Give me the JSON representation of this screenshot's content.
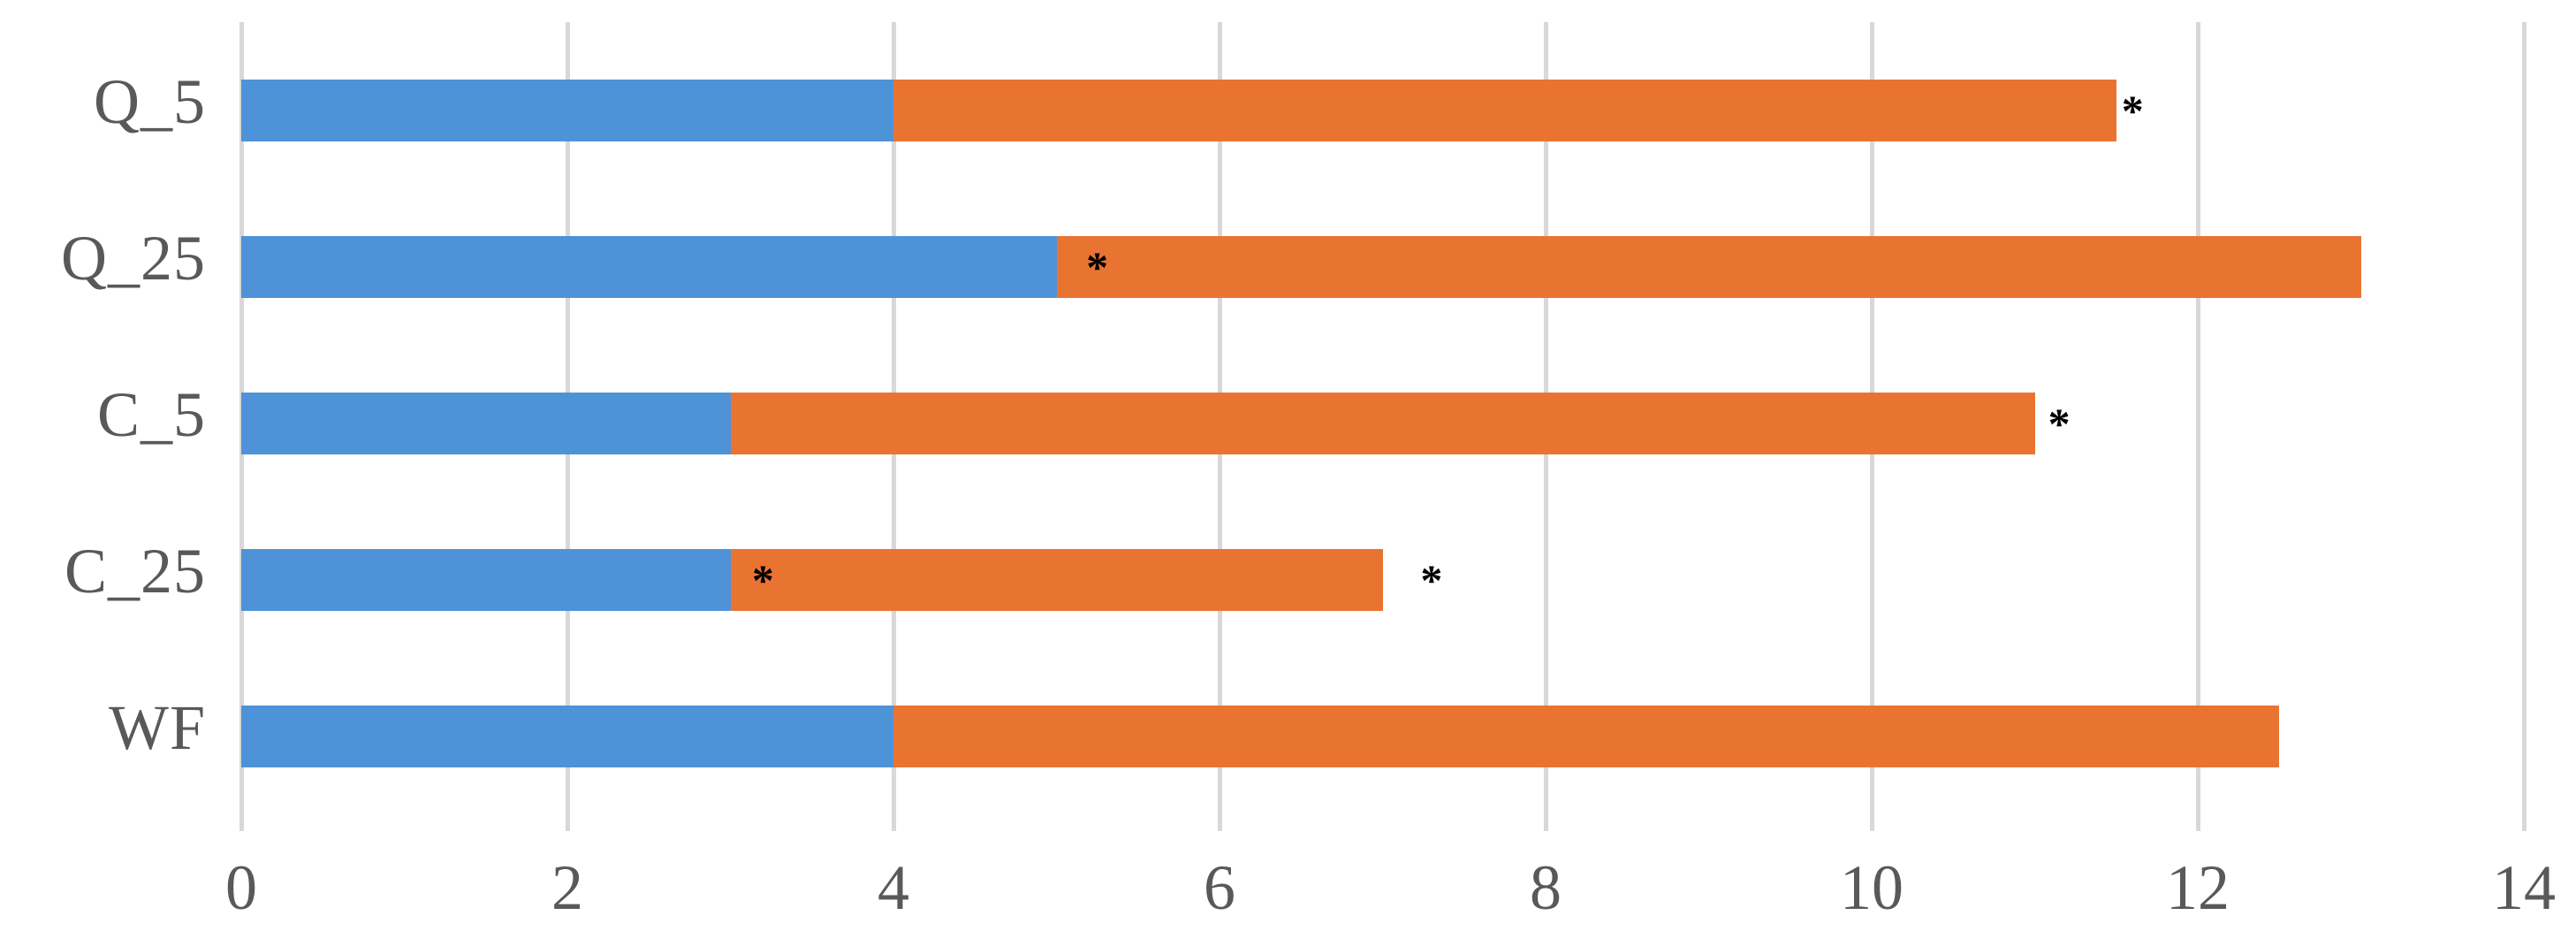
{
  "chart_data": {
    "type": "bar",
    "orientation": "horizontal",
    "stacked": true,
    "title": "",
    "xlabel": "",
    "ylabel": "",
    "categories": [
      "Q_5",
      "Q_25",
      "C_5",
      "C_25",
      "WF"
    ],
    "series": [
      {
        "name": "series-blue",
        "color": "#4E92D8",
        "values": [
          4,
          5,
          3,
          3,
          4
        ]
      },
      {
        "name": "series-orange",
        "color": "#E97432",
        "values": [
          7.5,
          8,
          8,
          4,
          8.5
        ]
      }
    ],
    "totals": [
      11.5,
      13,
      11,
      7,
      12.5
    ],
    "annotations": [
      {
        "category": "Q_5",
        "value": 11.6,
        "text": "*"
      },
      {
        "category": "Q_25",
        "value": 5.25,
        "text": "*"
      },
      {
        "category": "C_5",
        "value": 11.15,
        "text": "*"
      },
      {
        "category": "C_25",
        "value": 3.2,
        "text": "*"
      },
      {
        "category": "C_25",
        "value": 7.3,
        "text": "*"
      }
    ],
    "x_ticks": [
      0,
      2,
      4,
      6,
      8,
      10,
      12,
      14
    ],
    "xlim": [
      0,
      14
    ],
    "grid": true,
    "legend": false,
    "colors": {
      "gridline": "#D8D8D8",
      "axis_text": "#595959",
      "annotation_text": "#000000",
      "background": "#FFFFFF"
    }
  }
}
